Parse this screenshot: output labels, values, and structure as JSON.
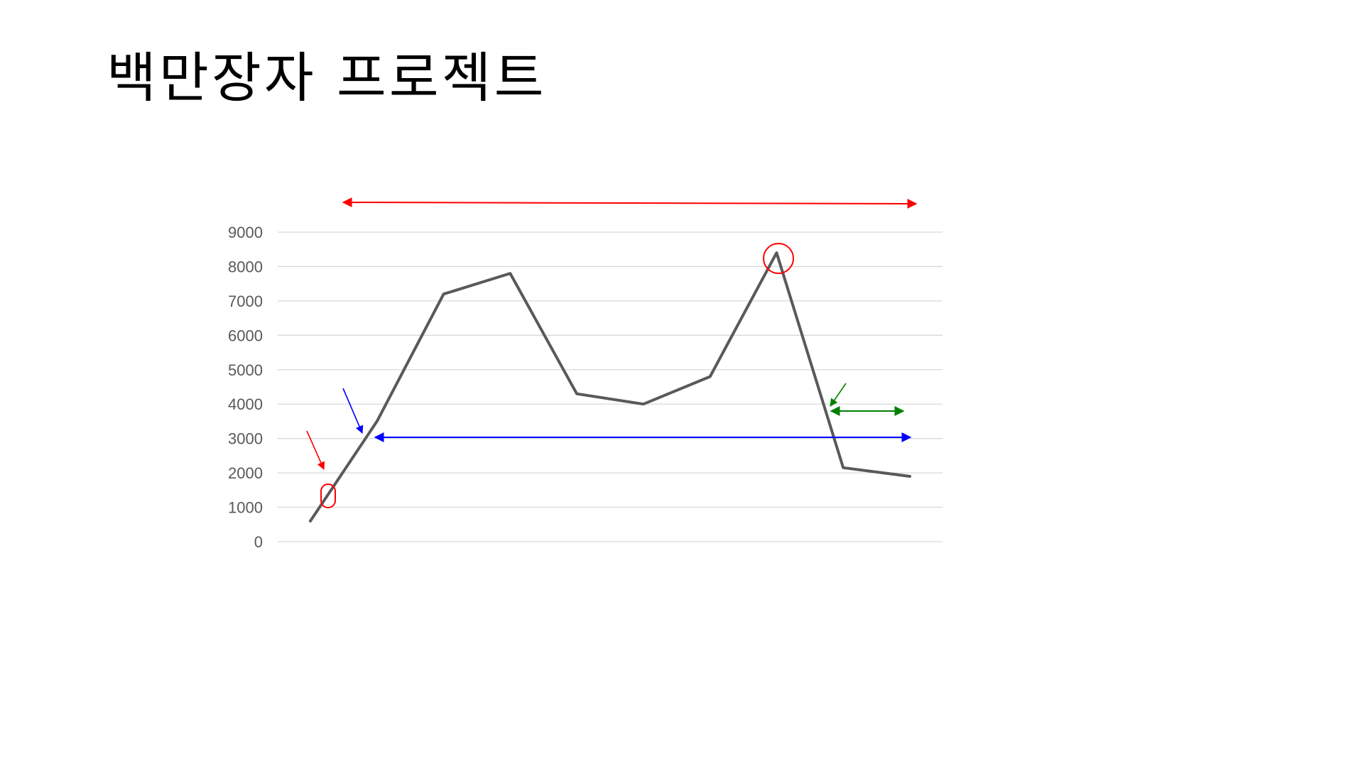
{
  "slide": {
    "title": "백만장자 프로젝트"
  },
  "chart_data": {
    "type": "line",
    "title": "",
    "xlabel": "",
    "ylabel": "",
    "ylim": [
      0,
      9000
    ],
    "yticks": [
      0,
      1000,
      2000,
      3000,
      4000,
      5000,
      6000,
      7000,
      8000,
      9000
    ],
    "x": [
      1,
      2,
      3,
      4,
      5,
      6,
      7,
      8,
      9,
      10
    ],
    "series": [
      {
        "values": [
          600,
          3500,
          7200,
          7800,
          4300,
          4000,
          4800,
          8400,
          2150,
          1900
        ],
        "color": "#595959"
      }
    ],
    "grid": true,
    "legend": "none"
  },
  "colors": {
    "gridline": "#d9d9d9",
    "axis_text": "#595959",
    "annotation_red": "#ff0000",
    "annotation_blue": "#0000ff",
    "annotation_green": "#008000"
  }
}
